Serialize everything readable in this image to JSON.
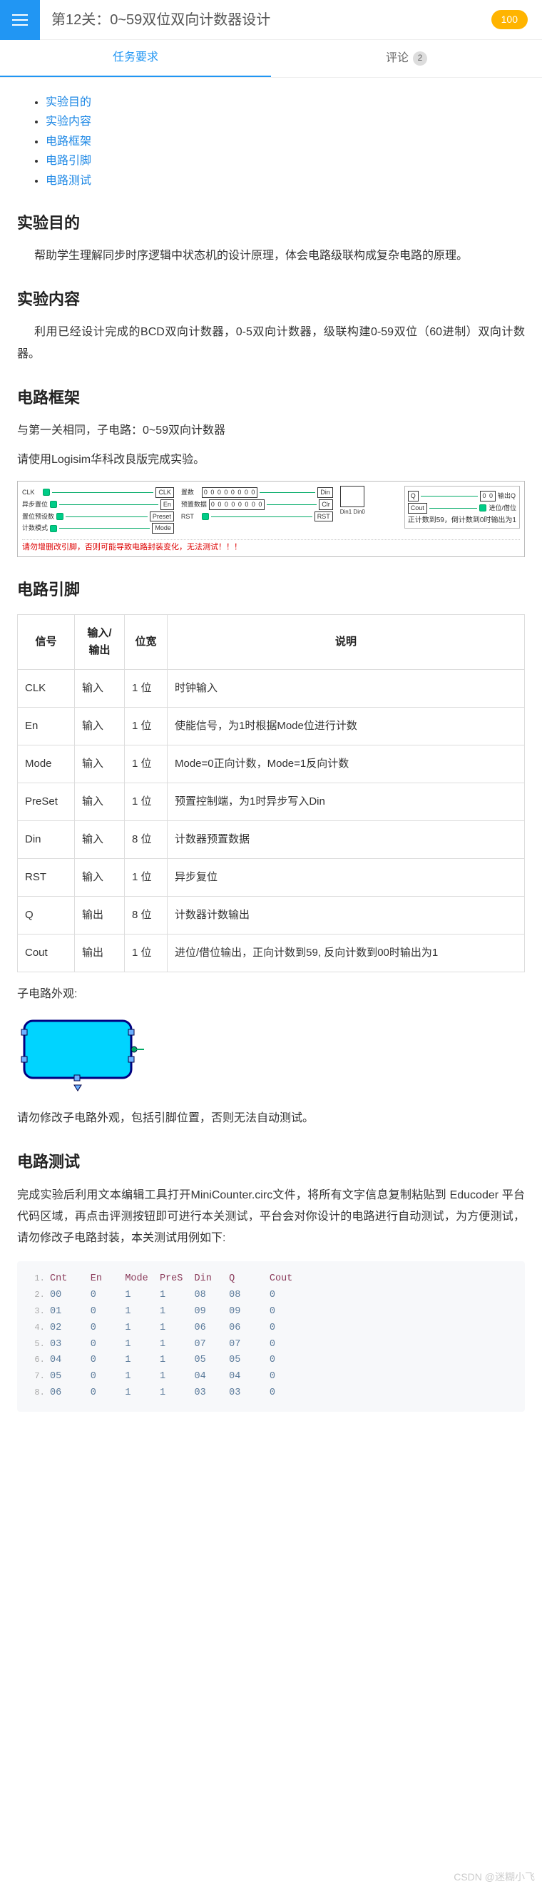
{
  "header": {
    "title": "第12关：0~59双位双向计数器设计",
    "points": "100"
  },
  "tabs": {
    "task": "任务要求",
    "comments": "评论",
    "comments_count": "2"
  },
  "toc": {
    "i1": "实验目的",
    "i2": "实验内容",
    "i3": "电路框架",
    "i4": "电路引脚",
    "i5": "电路测试"
  },
  "sections": {
    "purpose": {
      "title": "实验目的",
      "text": "帮助学生理解同步时序逻辑中状态机的设计原理，体会电路级联构成复杂电路的原理。"
    },
    "content": {
      "title": "实验内容",
      "text": "利用已经设计完成的BCD双向计数器，0-5双向计数器，级联构建0-59双位（60进制）双向计数器。"
    },
    "frame": {
      "title": "电路框架",
      "line1": "与第一关相同，子电路：0~59双向计数器",
      "line2": "请使用Logisim华科改良版完成实验。",
      "fig": {
        "labels": {
          "clk": "CLK",
          "en": "异步置位",
          "preset": "置位预设数",
          "mode": "计数模式",
          "seg": "0 0 0 0 0 0 0 0",
          "pre": "Preset",
          "md": "Mode",
          "rst": "RST",
          "din": "Din",
          "q": "Q",
          "cout": "Cout",
          "out_q": "输出Q",
          "out_cout": "进位/借位"
        },
        "warn": "请勿增删改引脚，否则可能导致电路封装变化，无法测试！！！",
        "note": "正计数到59，倒计数到0时输出为1"
      }
    },
    "pins": {
      "title": "电路引脚",
      "table": {
        "headers": {
          "c1": "信号",
          "c2": "输入/输出",
          "c3": "位宽",
          "c4": "说明"
        },
        "rows": [
          {
            "sig": "CLK",
            "io": "输入",
            "w": "1 位",
            "desc": "时钟输入"
          },
          {
            "sig": "En",
            "io": "输入",
            "w": "1 位",
            "desc": "使能信号，为1时根据Mode位进行计数"
          },
          {
            "sig": "Mode",
            "io": "输入",
            "w": "1 位",
            "desc": "Mode=0正向计数，Mode=1反向计数"
          },
          {
            "sig": "PreSet",
            "io": "输入",
            "w": "1 位",
            "desc": "预置控制端，为1时异步写入Din"
          },
          {
            "sig": "Din",
            "io": "输入",
            "w": "8 位",
            "desc": "计数器预置数据"
          },
          {
            "sig": "RST",
            "io": "输入",
            "w": "1 位",
            "desc": "异步复位"
          },
          {
            "sig": "Q",
            "io": "输出",
            "w": "8 位",
            "desc": "计数器计数输出"
          },
          {
            "sig": "Cout",
            "io": "输出",
            "w": "1 位",
            "desc": "进位/借位输出，正向计数到59, 反向计数到00时输出为1"
          }
        ]
      },
      "sub_label": "子电路外观:",
      "sub_warn": "请勿修改子电路外观，包括引脚位置，否则无法自动测试。"
    },
    "test": {
      "title": "电路测试",
      "text": "完成实验后利用文本编辑工具打开MiniCounter.circ文件，将所有文字信息复制粘贴到 Educoder 平台代码区域，再点击评测按钮即可进行本关测试，平台会对你设计的电路进行自动测试，为方便测试，请勿修改子电路封装，本关测试用例如下:",
      "code": {
        "header": [
          "Cnt",
          "En",
          "Mode",
          "PreS",
          "Din",
          "Q",
          "Cout"
        ],
        "rows": [
          [
            "00",
            "0",
            "1",
            "1",
            "08",
            "08",
            "0"
          ],
          [
            "01",
            "0",
            "1",
            "1",
            "09",
            "09",
            "0"
          ],
          [
            "02",
            "0",
            "1",
            "1",
            "06",
            "06",
            "0"
          ],
          [
            "03",
            "0",
            "1",
            "1",
            "07",
            "07",
            "0"
          ],
          [
            "04",
            "0",
            "1",
            "1",
            "05",
            "05",
            "0"
          ],
          [
            "05",
            "0",
            "1",
            "1",
            "04",
            "04",
            "0"
          ],
          [
            "06",
            "0",
            "1",
            "1",
            "03",
            "03",
            "0"
          ]
        ]
      }
    }
  },
  "watermark": "CSDN @迷糊小飞",
  "colors": {
    "accent": "#2196f3",
    "points_bg": "#ffb400",
    "link": "#1e88e5",
    "shape_fill": "#00d4ff",
    "shape_stroke": "#000080",
    "code_header": "#8a3a5a",
    "code_cell": "#5a7a9a",
    "warn": "#d00000"
  }
}
